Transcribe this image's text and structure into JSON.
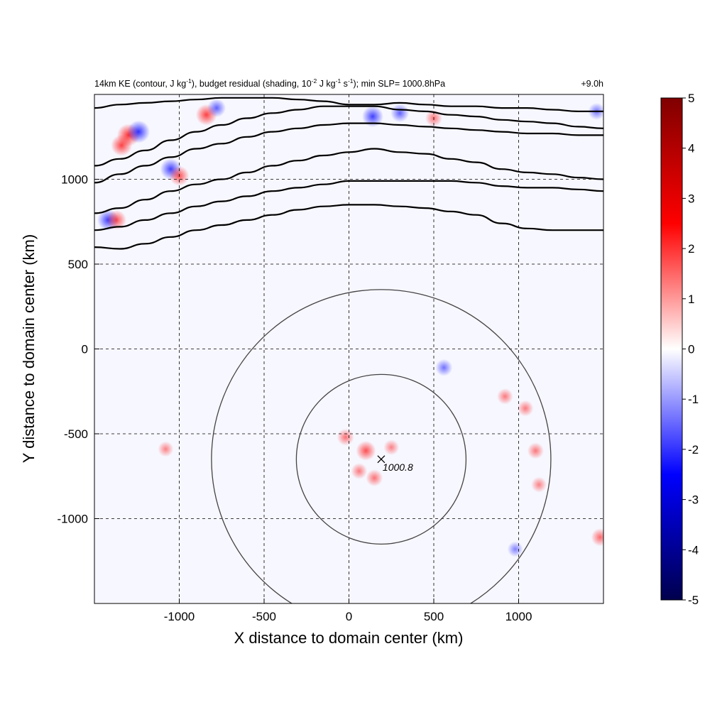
{
  "chart_data": {
    "type": "heatmap",
    "title": {
      "p1": "14km KE (contour, J kg",
      "e1": "-1",
      "p2": "), budget residual (shading, 10",
      "e2": "-2",
      "p3": " J kg",
      "e3": "-1",
      "p4": " s",
      "e4": "-1",
      "p5": "); min SLP= 1000.8hPa"
    },
    "time_label": "+9.0h",
    "xlabel": "X distance to domain center (km)",
    "ylabel": "Y distance to domain center (km)",
    "xlim": [
      -1500,
      1500
    ],
    "ylim": [
      -1500,
      1500
    ],
    "x_ticks": [
      -1000,
      -500,
      0,
      500,
      1000
    ],
    "y_ticks": [
      1000,
      500,
      0,
      -500,
      -1000
    ],
    "grid": true,
    "colorbar": {
      "range": [
        -5,
        5
      ],
      "ticks": [
        5,
        4,
        3,
        2,
        1,
        0,
        -1,
        -2,
        -3,
        -4,
        -5
      ],
      "colormap": [
        "#00004d",
        "#0000ff",
        "#ffffff",
        "#ff0000",
        "#800000"
      ]
    },
    "storm_center": {
      "x": 190,
      "y": -650,
      "min_slp_label": "1000.8"
    },
    "range_rings_km": [
      500,
      1000
    ],
    "ke_contours": [
      {
        "x": [
          -1500,
          -1350,
          -1200,
          -1050,
          -900,
          -750,
          -600,
          -450,
          -300,
          -150,
          0,
          150,
          300,
          450,
          600,
          750,
          900,
          1050,
          1200,
          1350,
          1500
        ],
        "y": [
          600,
          590,
          620,
          660,
          700,
          730,
          760,
          790,
          820,
          840,
          850,
          850,
          840,
          830,
          810,
          790,
          740,
          710,
          700,
          700,
          700
        ]
      },
      {
        "x": [
          -1500,
          -1350,
          -1200,
          -1050,
          -900,
          -750,
          -600,
          -450,
          -300,
          -150,
          0,
          150,
          300,
          450,
          600,
          750,
          900,
          1050,
          1200,
          1350,
          1500
        ],
        "y": [
          700,
          720,
          760,
          800,
          840,
          870,
          900,
          930,
          950,
          970,
          990,
          990,
          990,
          990,
          990,
          980,
          960,
          950,
          950,
          940,
          930
        ]
      },
      {
        "x": [
          -1500,
          -1350,
          -1200,
          -1050,
          -900,
          -750,
          -600,
          -450,
          -300,
          -150,
          0,
          150,
          300,
          450,
          600,
          750,
          900,
          1050,
          1200,
          1350,
          1500
        ],
        "y": [
          800,
          830,
          880,
          930,
          970,
          1000,
          1040,
          1080,
          1110,
          1140,
          1160,
          1180,
          1160,
          1150,
          1120,
          1100,
          1060,
          1040,
          1030,
          1010,
          1000
        ]
      },
      {
        "x": [
          -1500,
          -1350,
          -1200,
          -1050,
          -900,
          -750,
          -600,
          -450,
          -300,
          -150,
          0,
          150,
          300,
          450,
          600,
          750,
          900,
          1050,
          1200,
          1350,
          1500
        ],
        "y": [
          980,
          1030,
          1080,
          1130,
          1180,
          1210,
          1250,
          1280,
          1300,
          1320,
          1330,
          1330,
          1320,
          1310,
          1300,
          1290,
          1280,
          1270,
          1270,
          1260,
          1260
        ]
      },
      {
        "x": [
          -1500,
          -1350,
          -1200,
          -1050,
          -900,
          -750,
          -600,
          -450,
          -300,
          -150,
          0,
          150,
          300,
          450,
          600,
          750,
          900,
          1050,
          1200,
          1350,
          1500
        ],
        "y": [
          1080,
          1120,
          1170,
          1230,
          1280,
          1320,
          1360,
          1390,
          1410,
          1430,
          1430,
          1430,
          1410,
          1400,
          1380,
          1370,
          1350,
          1340,
          1330,
          1310,
          1300
        ]
      },
      {
        "x": [
          -1500,
          -1350,
          -1200,
          -1050,
          -900,
          -750,
          -600,
          -450,
          -300,
          -150,
          0,
          150,
          300,
          450,
          600,
          750,
          900,
          1050,
          1200,
          1350,
          1500
        ],
        "y": [
          1420,
          1440,
          1450,
          1460,
          1470,
          1480,
          1480,
          1480,
          1470,
          1460,
          1440,
          1440,
          1450,
          1440,
          1430,
          1430,
          1420,
          1420,
          1410,
          1400,
          1400
        ]
      }
    ],
    "residual_features": [
      {
        "x": 100,
        "y": -600,
        "value": 2.5
      },
      {
        "x": 150,
        "y": -760,
        "value": 1.5
      },
      {
        "x": -20,
        "y": -520,
        "value": 1.5
      },
      {
        "x": 60,
        "y": -720,
        "value": 1.2
      },
      {
        "x": 250,
        "y": -580,
        "value": 1.0
      },
      {
        "x": 560,
        "y": -110,
        "value": -1.5
      },
      {
        "x": 1100,
        "y": -600,
        "value": 1.3
      },
      {
        "x": 1120,
        "y": -800,
        "value": 1.0
      },
      {
        "x": 1040,
        "y": -350,
        "value": 1.2
      },
      {
        "x": 920,
        "y": -280,
        "value": 1.2
      },
      {
        "x": -1080,
        "y": -590,
        "value": 1.0
      },
      {
        "x": 1480,
        "y": -1110,
        "value": 1.8
      },
      {
        "x": 980,
        "y": -1180,
        "value": -1.0
      },
      {
        "x": -1300,
        "y": 1260,
        "value": 3.5
      },
      {
        "x": -1340,
        "y": 1200,
        "value": 3.0
      },
      {
        "x": -1240,
        "y": 1280,
        "value": -3.5
      },
      {
        "x": -1420,
        "y": 760,
        "value": -3.0
      },
      {
        "x": -1370,
        "y": 760,
        "value": 2.5
      },
      {
        "x": -1050,
        "y": 1060,
        "value": -3.0
      },
      {
        "x": -1000,
        "y": 1020,
        "value": 2.5
      },
      {
        "x": -840,
        "y": 1380,
        "value": 3.0
      },
      {
        "x": -780,
        "y": 1420,
        "value": -2.0
      },
      {
        "x": 140,
        "y": 1370,
        "value": -3.0
      },
      {
        "x": 300,
        "y": 1390,
        "value": -2.0
      },
      {
        "x": 500,
        "y": 1360,
        "value": 1.5
      },
      {
        "x": 1460,
        "y": 1400,
        "value": -1.5
      }
    ]
  }
}
